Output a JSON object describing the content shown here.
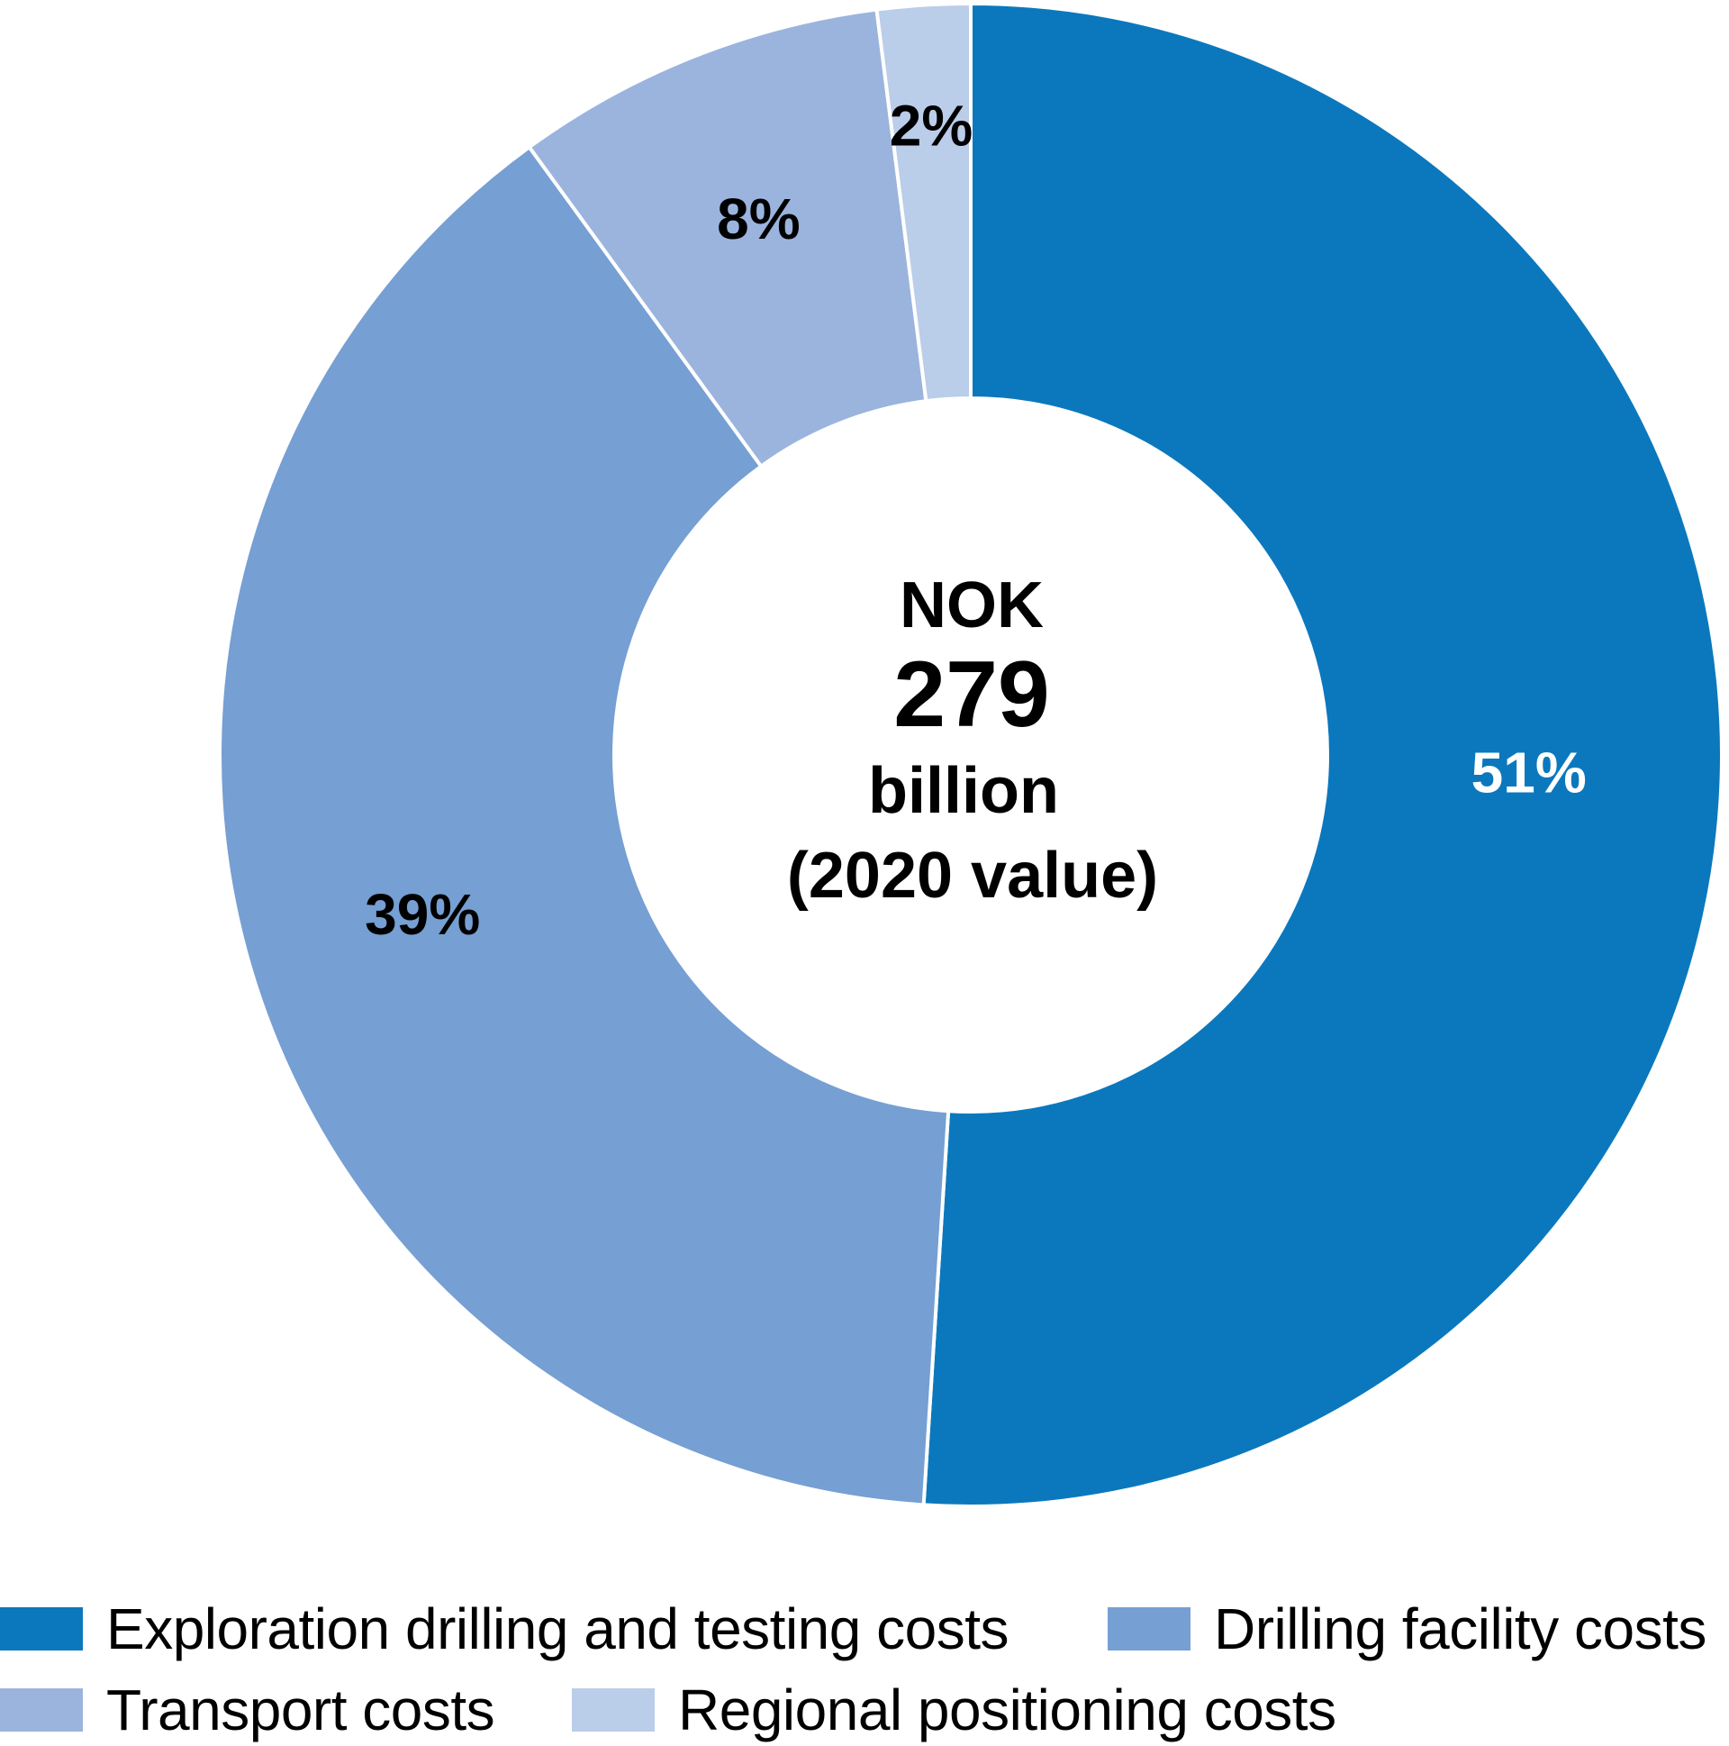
{
  "chart_data": {
    "type": "pie",
    "variant": "donut",
    "title": "",
    "center_label": {
      "line1": "NOK",
      "line2": "279",
      "line3": "billion",
      "line4": "(2020 value)"
    },
    "unit": "%",
    "start_angle": "top",
    "direction": "clockwise",
    "legend_position": "bottom",
    "slices": [
      {
        "name": "Exploration drilling and testing costs",
        "value": 51,
        "label": "51%",
        "color": "#0b78bd",
        "label_color": "#ffffff"
      },
      {
        "name": "Drilling facility costs",
        "value": 39,
        "label": "39%",
        "color": "#769fd3",
        "label_color": "#000000"
      },
      {
        "name": "Transport costs",
        "value": 8,
        "label": "8%",
        "color": "#9bb4de",
        "label_color": "#000000"
      },
      {
        "name": "Regional positioning costs",
        "value": 2,
        "label": "2%",
        "color": "#bacde9",
        "label_color": "#000000"
      }
    ]
  },
  "legend": {
    "items": [
      {
        "label": "Exploration drilling and testing costs",
        "color": "#0b78bd"
      },
      {
        "label": "Drilling facility costs",
        "color": "#769fd3"
      },
      {
        "label": "Transport costs",
        "color": "#9bb4de"
      },
      {
        "label": "Regional positioning costs",
        "color": "#bacde9"
      }
    ]
  }
}
